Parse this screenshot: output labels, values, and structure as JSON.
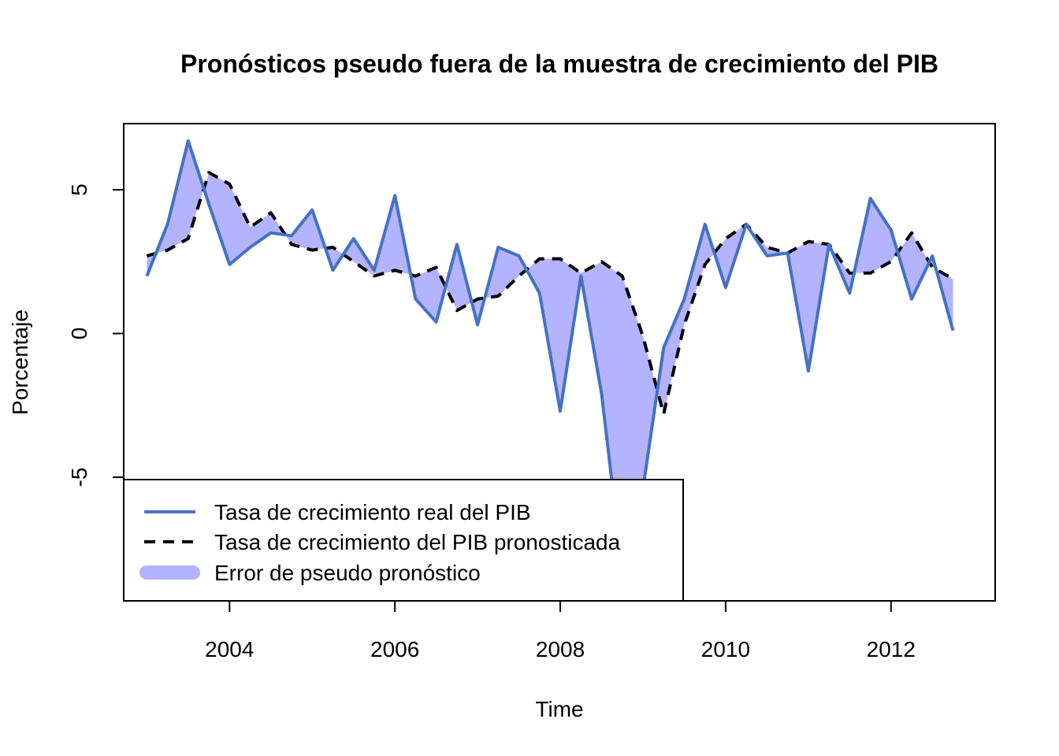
{
  "chart_data": {
    "type": "line",
    "title": "Pronósticos pseudo fuera de la muestra de crecimiento del PIB",
    "xlabel": "Time",
    "ylabel": "Porcentaje",
    "xlim": [
      2002.72,
      2013.26
    ],
    "ylim": [
      -9.3,
      7.3
    ],
    "x_ticks": [
      2004,
      2006,
      2008,
      2010,
      2012
    ],
    "x_tick_labels": [
      "2004",
      "2006",
      "2008",
      "2010",
      "2012"
    ],
    "y_ticks": [
      -5,
      0,
      5
    ],
    "y_tick_labels": [
      "-5",
      "0",
      "5"
    ],
    "grid": false,
    "legend_position": "bottom-left",
    "colors": {
      "actual": "#4472c4",
      "forecast": "#000000",
      "error_fill": "#b3b3ff"
    },
    "x": [
      2003.0,
      2003.25,
      2003.5,
      2003.75,
      2004.0,
      2004.25,
      2004.5,
      2004.75,
      2005.0,
      2005.25,
      2005.5,
      2005.75,
      2006.0,
      2006.25,
      2006.5,
      2006.75,
      2007.0,
      2007.25,
      2007.5,
      2007.75,
      2008.0,
      2008.25,
      2008.5,
      2008.75,
      2009.0,
      2009.25,
      2009.5,
      2009.75,
      2010.0,
      2010.25,
      2010.5,
      2010.75,
      2011.0,
      2011.25,
      2011.5,
      2011.75,
      2012.0,
      2012.25,
      2012.5,
      2012.75
    ],
    "series": [
      {
        "name": "Tasa de crecimiento real del PIB",
        "style": "solid",
        "values": [
          2.0,
          3.8,
          6.7,
          4.5,
          2.4,
          3.0,
          3.5,
          3.4,
          4.3,
          2.2,
          3.3,
          2.2,
          4.8,
          1.2,
          0.4,
          3.1,
          0.3,
          3.0,
          2.7,
          1.4,
          -2.7,
          2.0,
          -2.1,
          -8.2,
          -5.4,
          -0.5,
          1.2,
          3.8,
          1.6,
          3.8,
          2.7,
          2.8,
          -1.3,
          3.1,
          1.4,
          4.7,
          3.6,
          1.2,
          2.7,
          0.1
        ]
      },
      {
        "name": "Tasa de crecimiento del PIB pronosticada",
        "style": "dashed",
        "values": [
          2.7,
          2.9,
          3.3,
          5.6,
          5.2,
          3.7,
          4.2,
          3.1,
          2.9,
          3.0,
          2.5,
          2.0,
          2.2,
          2.0,
          2.3,
          0.8,
          1.2,
          1.3,
          2.0,
          2.6,
          2.6,
          2.1,
          2.5,
          2.0,
          -0.1,
          -2.8,
          0.3,
          2.4,
          3.3,
          3.8,
          3.0,
          2.8,
          3.2,
          3.1,
          2.1,
          2.1,
          2.5,
          3.5,
          2.3,
          1.9
        ]
      }
    ],
    "legend": [
      {
        "label": "Tasa de crecimiento real del PIB",
        "type": "line"
      },
      {
        "label": "Tasa de crecimiento del PIB pronosticada",
        "type": "dashed"
      },
      {
        "label": "Error de pseudo pronóstico",
        "type": "fill"
      }
    ]
  }
}
